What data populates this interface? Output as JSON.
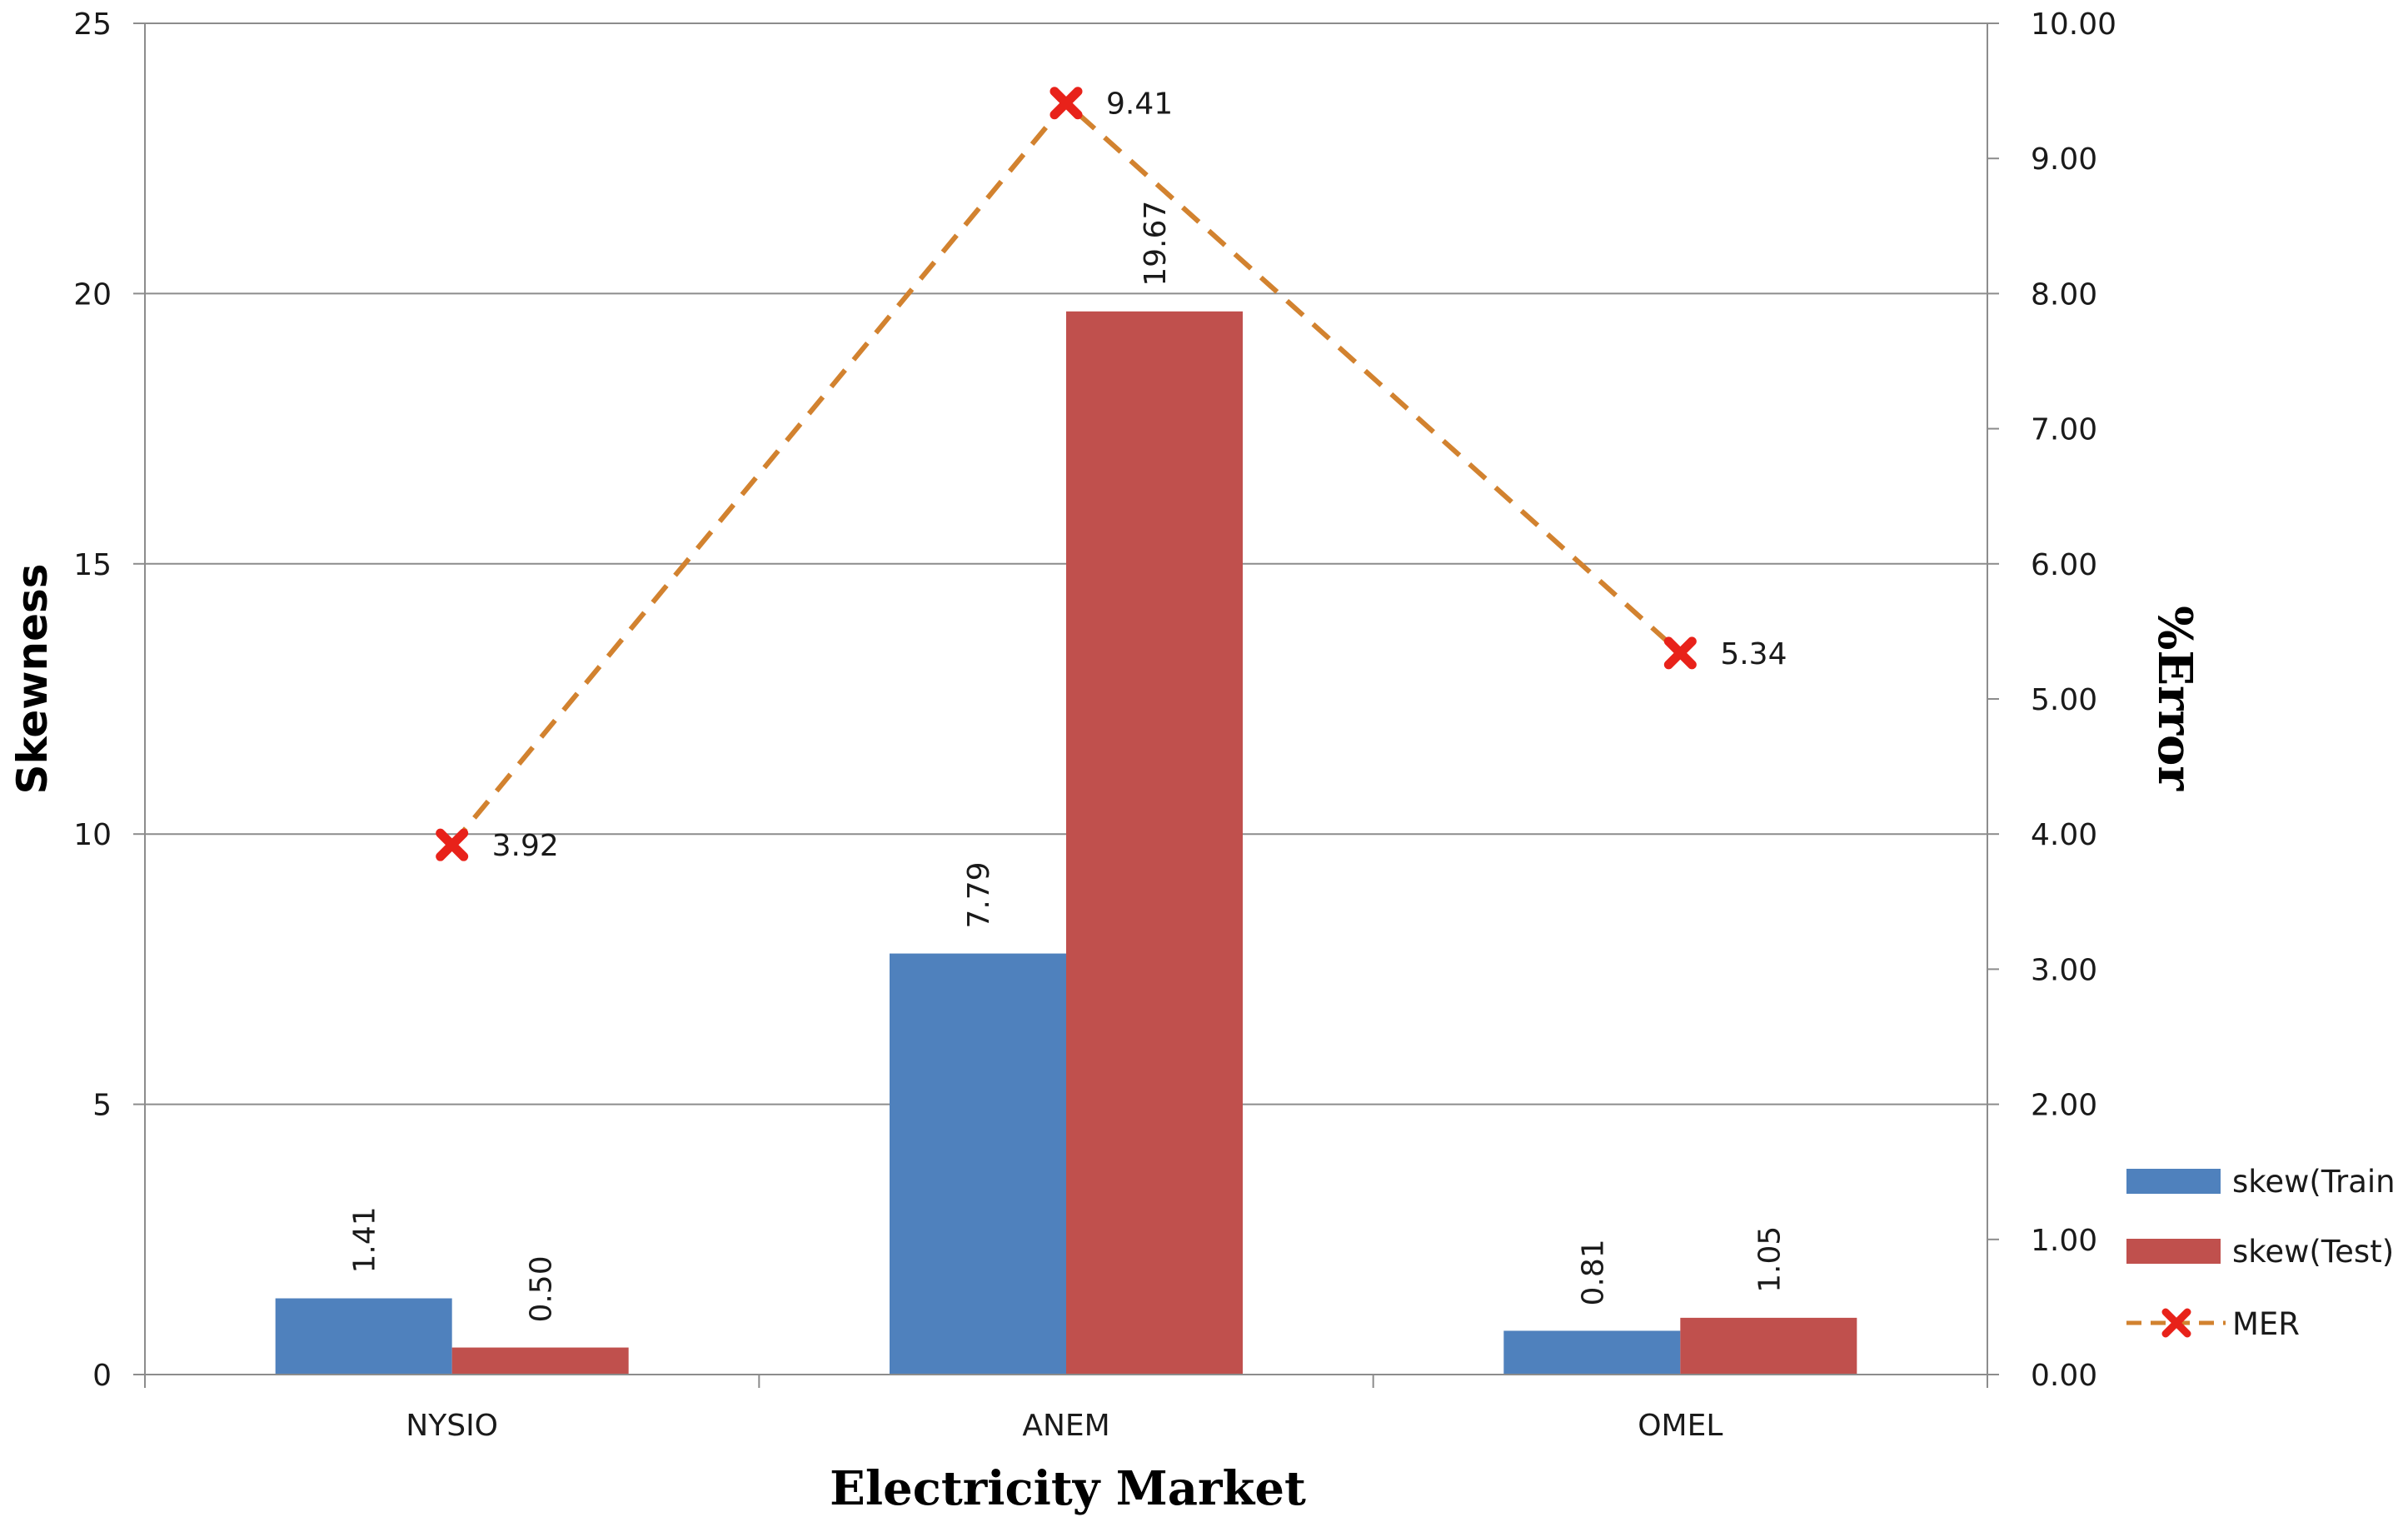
{
  "chart_data": {
    "type": "bar",
    "xlabel": "Electricity Market",
    "ylabel": "Skewness",
    "y2label": "%Error",
    "categories": [
      "NYSIO",
      "ANEM",
      "OMEL"
    ],
    "ylim": [
      0,
      25
    ],
    "yticks": [
      "0",
      "5",
      "10",
      "15",
      "20",
      "25"
    ],
    "y2lim": [
      0,
      10
    ],
    "y2ticks": [
      "0.00",
      "1.00",
      "2.00",
      "3.00",
      "4.00",
      "5.00",
      "6.00",
      "7.00",
      "8.00",
      "9.00",
      "10.00"
    ],
    "grid": true,
    "legend_position": "right",
    "series": [
      {
        "name": "skew(Train",
        "kind": "bar",
        "axis": "left",
        "color": "#4F81BD",
        "values": [
          1.41,
          7.79,
          0.81
        ],
        "labels": [
          "1.41",
          "7.79",
          "0.81"
        ]
      },
      {
        "name": "skew(Test)",
        "kind": "bar",
        "axis": "left",
        "color": "#C0504D",
        "values": [
          0.5,
          19.67,
          1.05
        ],
        "labels": [
          "0.50",
          "19.67",
          "1.05"
        ]
      },
      {
        "name": "MER",
        "kind": "line",
        "axis": "right",
        "line_color": "#D2822F",
        "marker_color": "#E8221A",
        "line_style": "dashed",
        "marker": "x",
        "values": [
          3.92,
          9.41,
          5.34
        ],
        "labels": [
          "3.92",
          "9.41",
          "5.34"
        ]
      }
    ]
  }
}
